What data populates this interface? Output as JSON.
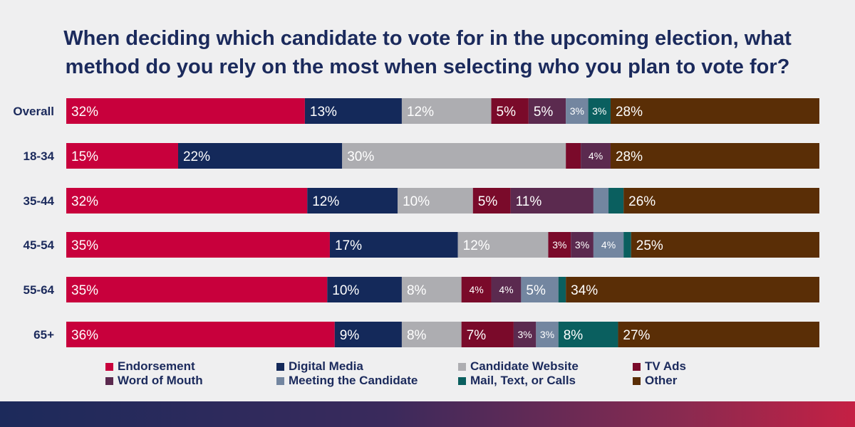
{
  "title": "When deciding which candidate to vote for in the upcoming election, what method do you rely on the most when selecting who you plan to vote for?",
  "colors": {
    "Endorsement": "#c8003c",
    "Digital Media": "#14295a",
    "Candidate Website": "#adadb1",
    "TV Ads": "#7a0a2a",
    "Word of Mouth": "#5b2a4f",
    "Meeting the Candidate": "#7386a0",
    "Mail, Text, or Calls": "#0a5f5f",
    "Other": "#5a2e06"
  },
  "legend": [
    "Endorsement",
    "Digital Media",
    "Candidate Website",
    "TV Ads",
    "Word of Mouth",
    "Meeting the Candidate",
    "Mail, Text, or Calls",
    "Other"
  ],
  "chart_data": {
    "type": "bar",
    "orientation": "horizontal",
    "stacked": true,
    "normalized": true,
    "categories": [
      "Overall",
      "18-34",
      "35-44",
      "45-54",
      "55-64",
      "65+"
    ],
    "series": [
      {
        "name": "Endorsement",
        "values": [
          32,
          15,
          32,
          35,
          35,
          36
        ],
        "labels": [
          "32%",
          "15%",
          "32%",
          "35%",
          "35%",
          "36%"
        ]
      },
      {
        "name": "Digital Media",
        "values": [
          13,
          22,
          12,
          17,
          10,
          9
        ],
        "labels": [
          "13%",
          "22%",
          "12%",
          "17%",
          "10%",
          "9%"
        ]
      },
      {
        "name": "Candidate Website",
        "values": [
          12,
          30,
          10,
          12,
          8,
          8
        ],
        "labels": [
          "12%",
          "30%",
          "10%",
          "12%",
          "8%",
          "8%"
        ]
      },
      {
        "name": "TV Ads",
        "values": [
          5,
          2,
          5,
          3,
          4,
          7
        ],
        "labels": [
          "5%",
          "",
          "5%",
          "3%",
          "4%",
          "7%"
        ]
      },
      {
        "name": "Word of Mouth",
        "values": [
          5,
          4,
          11,
          3,
          4,
          3
        ],
        "labels": [
          "5%",
          "4%",
          "11%",
          "3%",
          "4%",
          "3%"
        ]
      },
      {
        "name": "Meeting the Candidate",
        "values": [
          3,
          0,
          2,
          4,
          5,
          3
        ],
        "labels": [
          "3%",
          "",
          "",
          "4%",
          "5%",
          "3%"
        ]
      },
      {
        "name": "Mail, Text, or Calls",
        "values": [
          3,
          0,
          2,
          1,
          1,
          8
        ],
        "labels": [
          "3%",
          "",
          "",
          "",
          "",
          "8%"
        ]
      },
      {
        "name": "Other",
        "values": [
          28,
          28,
          26,
          25,
          34,
          27
        ],
        "labels": [
          "28%",
          "28%",
          "26%",
          "25%",
          "34%",
          "27%"
        ]
      }
    ]
  }
}
